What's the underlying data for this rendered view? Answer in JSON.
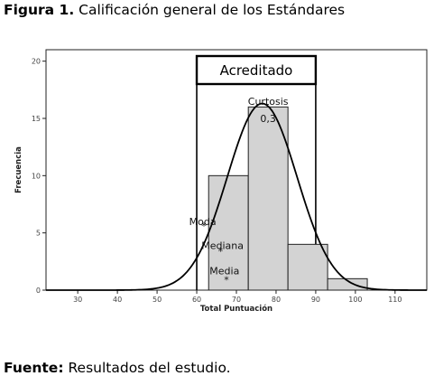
{
  "figure": {
    "label": "Figura 1.",
    "title": "Calificación general de los Estándares"
  },
  "source": {
    "label": "Fuente:",
    "text": "Resultados del estudio."
  },
  "chart_data": {
    "type": "bar",
    "subtype": "histogram",
    "xlabel": "Total Puntuación",
    "ylabel": "Frecuencia",
    "xlim": [
      22,
      118
    ],
    "ylim": [
      0,
      21
    ],
    "x_ticks": [
      30,
      40,
      50,
      60,
      70,
      80,
      90,
      100,
      110
    ],
    "y_ticks": [
      0,
      5,
      10,
      15,
      20
    ],
    "bins": [
      {
        "start": 63,
        "end": 73,
        "count": 10
      },
      {
        "start": 73,
        "end": 83,
        "count": 16
      },
      {
        "start": 83,
        "end": 93,
        "count": 4
      },
      {
        "start": 93,
        "end": 103,
        "count": 1
      }
    ],
    "bar_fill": "#d3d3d3",
    "normal_curve": {
      "mean": 76.5,
      "sd": 8.8,
      "peak": 16.3
    },
    "region": {
      "label": "Acreditado",
      "start": 60,
      "end": 90
    },
    "annotations": [
      {
        "text": "Curtosis",
        "x": 78,
        "y": 16.5
      },
      {
        "text": "0,3",
        "x": 78,
        "y": 15.0
      },
      {
        "text": "Moda",
        "x": 61.5,
        "y": 6.0,
        "marker_x": 61.8,
        "marker_y": 5.6
      },
      {
        "text": "Mediana",
        "x": 66.5,
        "y": 3.9,
        "marker_x": 66.0,
        "marker_y": 3.4
      },
      {
        "text": "Media",
        "x": 67.0,
        "y": 1.7,
        "marker_x": 67.5,
        "marker_y": 0.9
      }
    ],
    "grid": false
  }
}
